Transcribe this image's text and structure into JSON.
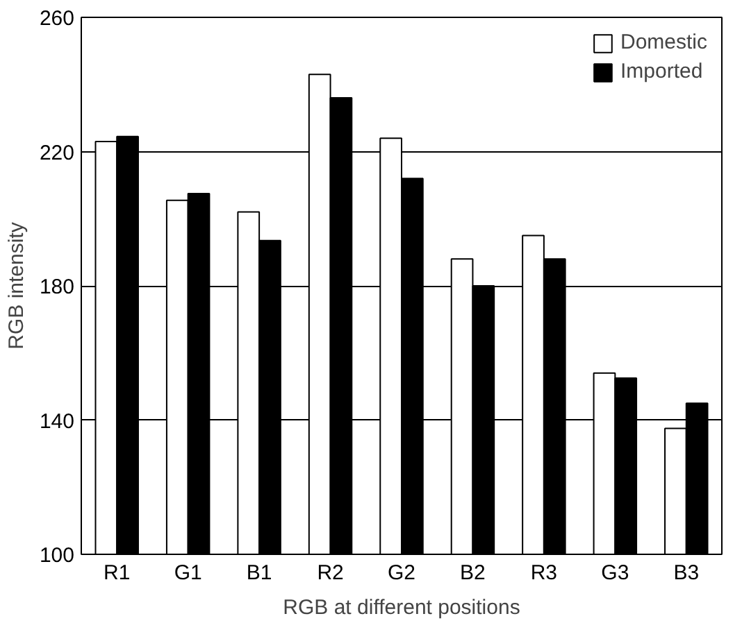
{
  "chart_data": {
    "type": "bar",
    "xlabel": "RGB at different positions",
    "ylabel": "RGB intensity",
    "categories": [
      "R1",
      "G1",
      "B1",
      "R2",
      "G2",
      "B2",
      "R3",
      "G3",
      "B3"
    ],
    "series": [
      {
        "name": "Domestic",
        "color": "#ffffff",
        "values": [
          223,
          205.5,
          202,
          243,
          224,
          188,
          195,
          154,
          137.5
        ]
      },
      {
        "name": "Imported",
        "color": "#000000",
        "values": [
          224.5,
          207.5,
          193.5,
          236,
          212,
          180,
          188,
          152.5,
          145
        ]
      }
    ],
    "ylim": [
      100,
      260
    ],
    "yticks": [
      100,
      140,
      180,
      220,
      260
    ],
    "grid": "y",
    "legend": "top right"
  }
}
